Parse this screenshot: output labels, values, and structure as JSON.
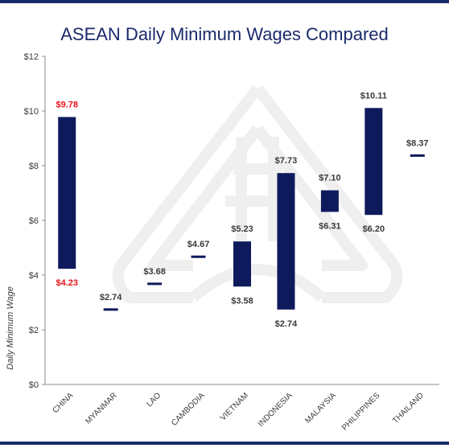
{
  "chart_data": {
    "type": "bar",
    "title": "ASEAN Daily Minimum Wages Compared",
    "ylabel": "Daily Minimum Wage",
    "xlabel": "",
    "ylim": [
      0,
      12
    ],
    "yticks": [
      "$0",
      "$2",
      "$4",
      "$6",
      "$8",
      "$10",
      "$12"
    ],
    "ytick_values": [
      0,
      2,
      4,
      6,
      8,
      10,
      12
    ],
    "grid": false,
    "legend": "none",
    "categories": [
      "CHINA",
      "MYANMAR",
      "LAO",
      "CAMBODIA",
      "VIETNAM",
      "INDONESIA",
      "MALAYSIA",
      "PHILIPPINES",
      "THAILAND"
    ],
    "ranges": [
      {
        "category": "CHINA",
        "low": 4.23,
        "high": 9.78,
        "low_label": "$4.23",
        "high_label": "$9.78",
        "highlight": true
      },
      {
        "category": "MYANMAR",
        "low": 2.74,
        "high": 2.74,
        "low_label": "",
        "high_label": "$2.74",
        "highlight": false
      },
      {
        "category": "LAO",
        "low": 3.68,
        "high": 3.68,
        "low_label": "",
        "high_label": "$3.68",
        "highlight": false
      },
      {
        "category": "CAMBODIA",
        "low": 4.67,
        "high": 4.67,
        "low_label": "",
        "high_label": "$4.67",
        "highlight": false
      },
      {
        "category": "VIETNAM",
        "low": 3.58,
        "high": 5.23,
        "low_label": "$3.58",
        "high_label": "$5.23",
        "highlight": false
      },
      {
        "category": "INDONESIA",
        "low": 2.74,
        "high": 7.73,
        "low_label": "$2.74",
        "high_label": "$7.73",
        "highlight": false
      },
      {
        "category": "MALAYSIA",
        "low": 6.31,
        "high": 7.1,
        "low_label": "$6.31",
        "high_label": "$7.10",
        "highlight": false
      },
      {
        "category": "PHILIPPINES",
        "low": 6.2,
        "high": 10.11,
        "low_label": "$6.20",
        "high_label": "$10.11",
        "highlight": false
      },
      {
        "category": "THAILAND",
        "low": 8.37,
        "high": 8.37,
        "low_label": "",
        "high_label": "$8.37",
        "highlight": false
      }
    ]
  },
  "colors": {
    "bar": "#0e1a5c",
    "border": "#1b2a6b",
    "highlight_label": "#e8141b",
    "label": "#3a3a3a",
    "axis": "#8c8c8c",
    "title": "#1b2a6b"
  }
}
